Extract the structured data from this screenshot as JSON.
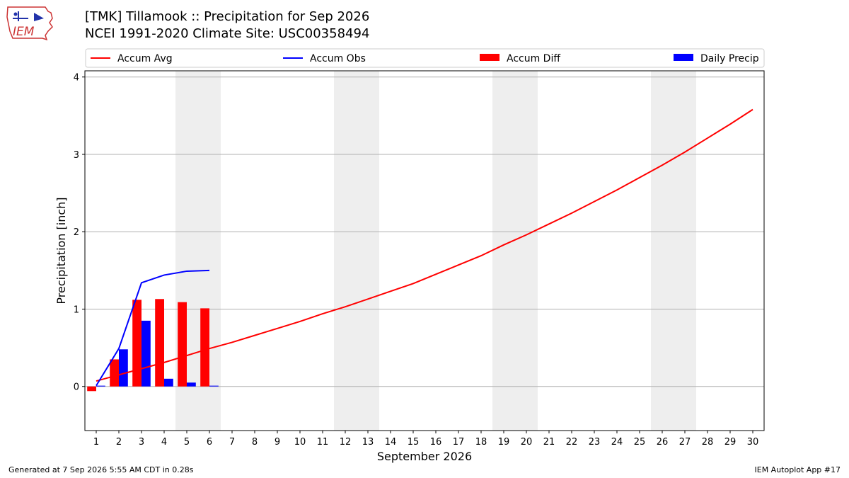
{
  "header": {
    "title_line1": "[TMK] Tillamook :: Precipitation for Sep 2026",
    "title_line2": "NCEI 1991-2020 Climate Site: USC00358494",
    "logo_text": "IEM"
  },
  "footer": {
    "generated": "Generated at 7 Sep 2026 5:55 AM CDT in 0.28s",
    "app": "IEM Autoplot App #17"
  },
  "colors": {
    "accum_avg": "#ff0000",
    "accum_obs": "#0000ff",
    "accum_diff": "#ff0000",
    "daily_precip": "#0000ff",
    "weekend_shade": "#eeeeee",
    "grid": "#b0b0b0"
  },
  "chart_data": {
    "type": "bar",
    "xlabel": "September 2026",
    "ylabel": "Precipitation [inch]",
    "xlim": [
      0.5,
      30.5
    ],
    "ylim": [
      -0.57,
      4.08
    ],
    "yticks": [
      0,
      1,
      2,
      3,
      4
    ],
    "xticks": [
      1,
      2,
      3,
      4,
      5,
      6,
      7,
      8,
      9,
      10,
      11,
      12,
      13,
      14,
      15,
      16,
      17,
      18,
      19,
      20,
      21,
      22,
      23,
      24,
      25,
      26,
      27,
      28,
      29,
      30
    ],
    "grid": "horizontal",
    "legend_position": "top",
    "weekend_days": [
      5,
      6,
      12,
      13,
      19,
      20,
      26,
      27
    ],
    "series": [
      {
        "name": "Accum Avg",
        "kind": "line",
        "x": [
          1,
          2,
          3,
          4,
          5,
          6,
          7,
          8,
          9,
          10,
          11,
          12,
          13,
          14,
          15,
          16,
          17,
          18,
          19,
          20,
          21,
          22,
          23,
          24,
          25,
          26,
          27,
          28,
          29,
          30
        ],
        "values": [
          0.07,
          0.15,
          0.23,
          0.31,
          0.4,
          0.49,
          0.57,
          0.66,
          0.75,
          0.84,
          0.94,
          1.03,
          1.13,
          1.23,
          1.33,
          1.45,
          1.57,
          1.69,
          1.83,
          1.96,
          2.1,
          2.24,
          2.39,
          2.54,
          2.7,
          2.86,
          3.03,
          3.21,
          3.39,
          3.58
        ]
      },
      {
        "name": "Accum Obs",
        "kind": "line",
        "x": [
          1,
          2,
          3,
          4,
          5,
          6
        ],
        "values": [
          0.01,
          0.49,
          1.34,
          1.44,
          1.49,
          1.5
        ]
      },
      {
        "name": "Accum Diff",
        "kind": "bar",
        "x": [
          1,
          2,
          3,
          4,
          5,
          6
        ],
        "values": [
          -0.06,
          0.35,
          1.12,
          1.13,
          1.09,
          1.01
        ]
      },
      {
        "name": "Daily Precip",
        "kind": "bar",
        "x": [
          1,
          2,
          3,
          4,
          5,
          6
        ],
        "values": [
          0.01,
          0.48,
          0.85,
          0.1,
          0.05,
          0.01
        ]
      }
    ]
  }
}
